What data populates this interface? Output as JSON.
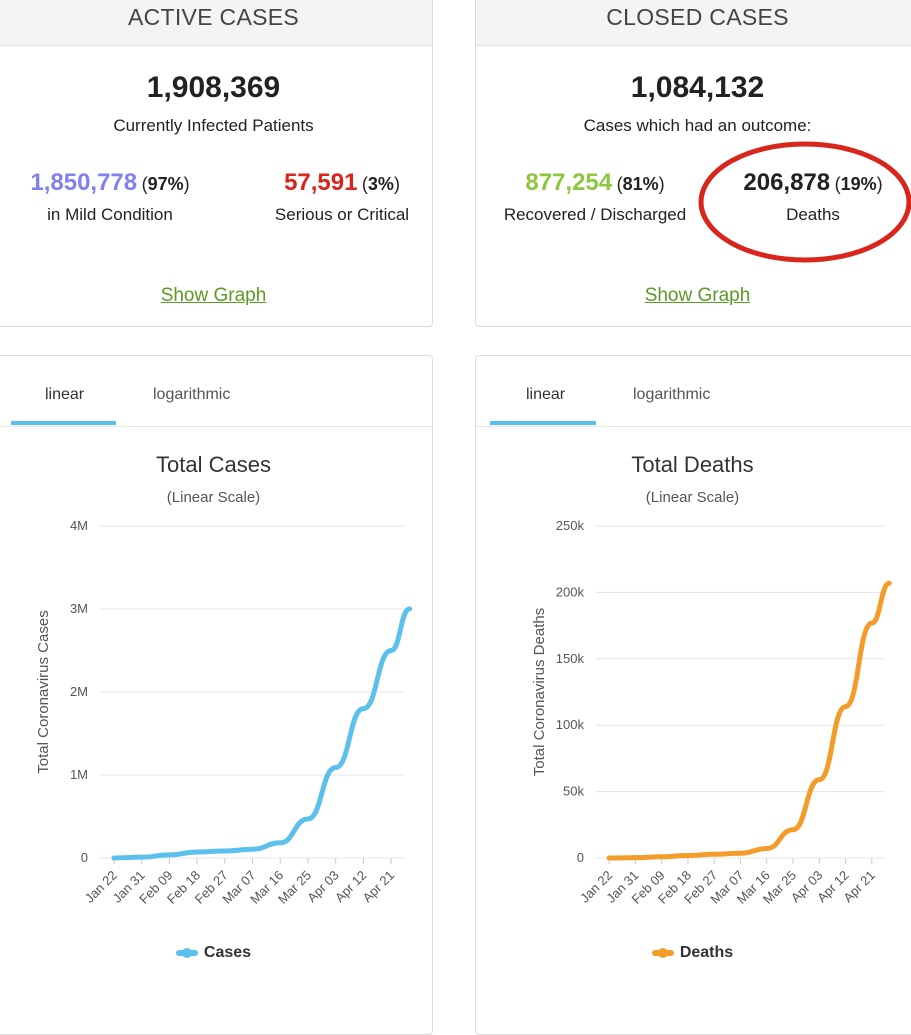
{
  "active": {
    "header": "ACTIVE CASES",
    "total": "1,908,369",
    "total_label": "Currently Infected Patients",
    "mild_value": "1,850,778",
    "mild_pct_open": " (",
    "mild_pct": "97%",
    "mild_pct_close": ")",
    "mild_label": "in Mild Condition",
    "critical_value": "57,591",
    "critical_pct": "3%",
    "critical_label": "Serious or Critical",
    "link": "Show Graph"
  },
  "closed": {
    "header": "CLOSED CASES",
    "total": "1,084,132",
    "total_label": "Cases which had an outcome:",
    "recovered_value": "877,254",
    "recovered_pct": "81%",
    "recovered_label": "Recovered / Discharged",
    "deaths_value": "206,878",
    "deaths_pct": "19%",
    "deaths_label": "Deaths",
    "link": "Show Graph"
  },
  "tabs": {
    "linear": "linear",
    "log": "logarithmic"
  },
  "colors": {
    "mild": "#8080f0",
    "critical": "#d9261c",
    "recovered": "#8dc63f",
    "cases_line": "#5bc0eb",
    "deaths_line": "#f39c2a",
    "annotation": "#d9261c"
  },
  "chart_data": [
    {
      "type": "line",
      "title": "Total Cases",
      "subtitle": "(Linear Scale)",
      "ylabel": "Total Coronavirus Cases",
      "xlabel": "",
      "x_ticks": [
        "Jan 22",
        "Jan 31",
        "Feb 09",
        "Feb 18",
        "Feb 27",
        "Mar 07",
        "Mar 16",
        "Mar 25",
        "Apr 03",
        "Apr 12",
        "Apr 21"
      ],
      "y_ticks": [
        "0",
        "1M",
        "2M",
        "3M",
        "4M"
      ],
      "ylim": [
        0,
        4000000
      ],
      "series": [
        {
          "name": "Cases",
          "color": "#5bc0eb",
          "x": [
            "Jan 22",
            "Jan 31",
            "Feb 09",
            "Feb 18",
            "Feb 27",
            "Mar 07",
            "Mar 16",
            "Mar 25",
            "Apr 03",
            "Apr 12",
            "Apr 21",
            "Apr 27"
          ],
          "values": [
            500,
            10000,
            37000,
            73000,
            84000,
            106000,
            183000,
            470000,
            1090000,
            1800000,
            2500000,
            3000000
          ]
        }
      ],
      "legend": "bottom",
      "grid": true
    },
    {
      "type": "line",
      "title": "Total Deaths",
      "subtitle": "(Linear Scale)",
      "ylabel": "Total Coronavirus Deaths",
      "xlabel": "",
      "x_ticks": [
        "Jan 22",
        "Jan 31",
        "Feb 09",
        "Feb 18",
        "Feb 27",
        "Mar 07",
        "Mar 16",
        "Mar 25",
        "Apr 03",
        "Apr 12",
        "Apr 21"
      ],
      "y_ticks": [
        "0",
        "50k",
        "100k",
        "150k",
        "200k",
        "250k"
      ],
      "ylim": [
        0,
        250000
      ],
      "series": [
        {
          "name": "Deaths",
          "color": "#f39c2a",
          "x": [
            "Jan 22",
            "Jan 31",
            "Feb 09",
            "Feb 18",
            "Feb 27",
            "Mar 07",
            "Mar 16",
            "Mar 25",
            "Apr 03",
            "Apr 12",
            "Apr 21",
            "Apr 27"
          ],
          "values": [
            17,
            259,
            906,
            1873,
            2858,
            3558,
            7126,
            21300,
            59000,
            114000,
            177000,
            206878
          ]
        }
      ],
      "legend": "bottom",
      "grid": true
    }
  ]
}
